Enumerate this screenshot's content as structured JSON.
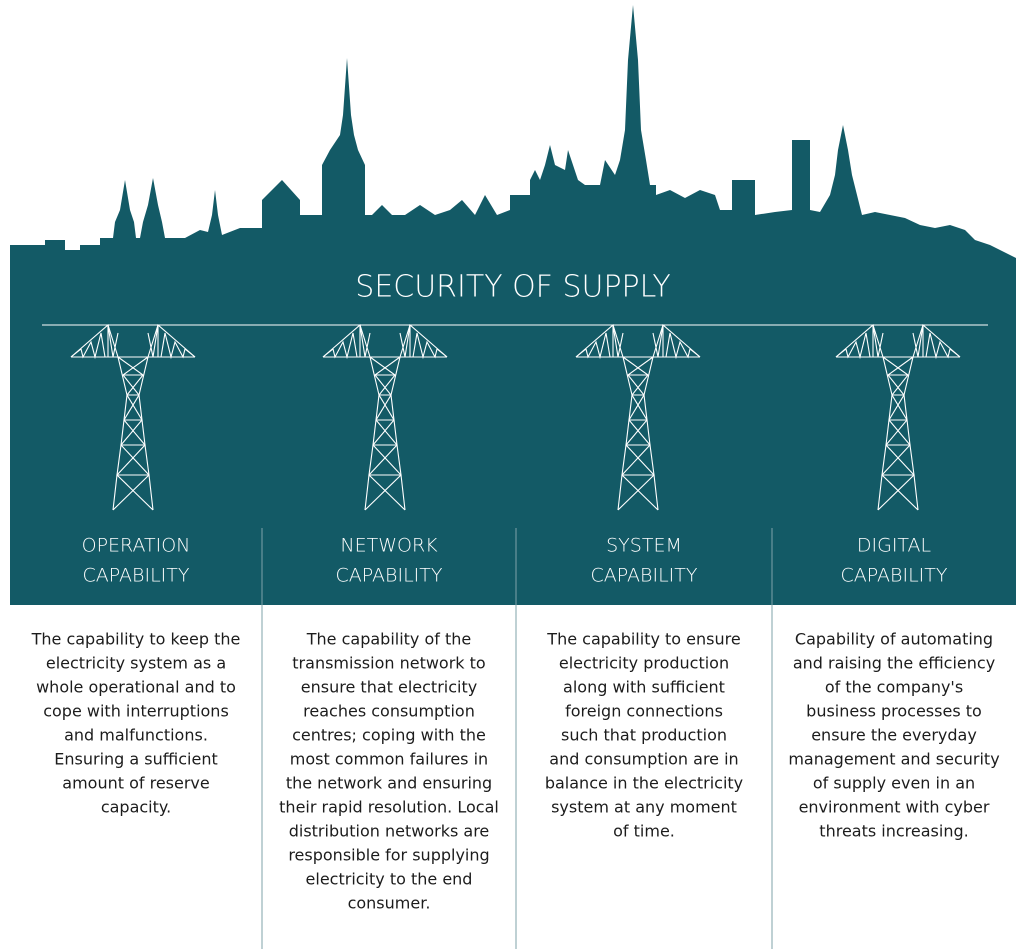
{
  "title": "SECURITY OF SUPPLY",
  "columns": [
    {
      "heading": [
        "OPERATION",
        "CAPABILITY"
      ],
      "description": [
        "The capability to keep the",
        "electricity system as a",
        "whole operational and to",
        "cope with interruptions",
        "and malfunctions.",
        "Ensuring a sufficient",
        "amount of reserve",
        "capacity."
      ]
    },
    {
      "heading": [
        "NETWORK",
        "CAPABILITY"
      ],
      "description": [
        "The capability of the",
        "transmission network to",
        "ensure that electricity",
        "reaches consumption",
        "centres; coping with the",
        "most common failures in",
        "the network and ensuring",
        "their rapid resolution. Local",
        "distribution networks are",
        "responsible for supplying",
        "electricity to the end",
        "consumer."
      ]
    },
    {
      "heading": [
        "SYSTEM",
        "CAPABILITY"
      ],
      "description": [
        "The capability to ensure",
        "electricity production",
        "along with sufficient",
        "foreign connections",
        "such that production",
        "and consumption are in",
        "balance in the electricity",
        "system at any moment",
        "of time."
      ]
    },
    {
      "heading": [
        "DIGITAL",
        "CAPABILITY"
      ],
      "description": [
        "Capability of automating",
        "and raising the efficiency",
        "of the company's",
        "business processes to",
        "ensure the everyday",
        "management and security",
        "of supply even in an",
        "environment with cyber",
        "threats increasing."
      ]
    }
  ]
}
